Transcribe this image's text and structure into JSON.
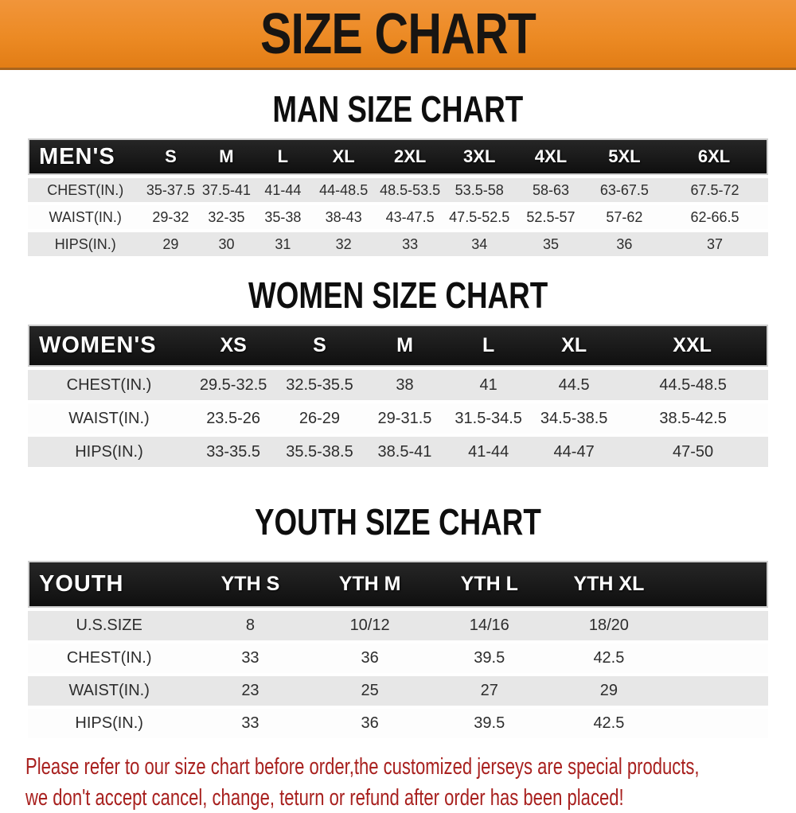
{
  "banner": {
    "title": "SIZE CHART",
    "bg_color": "#EC8A24",
    "text_color": "#181512"
  },
  "sections": {
    "men": {
      "title": "MAN SIZE CHART",
      "header_label": "MEN'S",
      "columns": [
        "S",
        "M",
        "L",
        "XL",
        "2XL",
        "3XL",
        "4XL",
        "5XL",
        "6XL"
      ],
      "rows": [
        {
          "label": "CHEST(IN.)",
          "values": [
            "35-37.5",
            "37.5-41",
            "41-44",
            "44-48.5",
            "48.5-53.5",
            "53.5-58",
            "58-63",
            "63-67.5",
            "67.5-72"
          ]
        },
        {
          "label": "WAIST(IN.)",
          "values": [
            "29-32",
            "32-35",
            "35-38",
            "38-43",
            "43-47.5",
            "47.5-52.5",
            "52.5-57",
            "57-62",
            "62-66.5"
          ]
        },
        {
          "label": "HIPS(IN.)",
          "values": [
            "29",
            "30",
            "31",
            "32",
            "33",
            "34",
            "35",
            "36",
            "37"
          ]
        }
      ]
    },
    "women": {
      "title": "WOMEN SIZE CHART",
      "header_label": "WOMEN'S",
      "columns": [
        "XS",
        "S",
        "M",
        "L",
        "XL",
        "XXL"
      ],
      "rows": [
        {
          "label": "CHEST(IN.)",
          "values": [
            "29.5-32.5",
            "32.5-35.5",
            "38",
            "41",
            "44.5",
            "44.5-48.5"
          ]
        },
        {
          "label": "WAIST(IN.)",
          "values": [
            "23.5-26",
            "26-29",
            "29-31.5",
            "31.5-34.5",
            "34.5-38.5",
            "38.5-42.5"
          ]
        },
        {
          "label": "HIPS(IN.)",
          "values": [
            "33-35.5",
            "35.5-38.5",
            "38.5-41",
            "41-44",
            "44-47",
            "47-50"
          ]
        }
      ]
    },
    "youth": {
      "title": "YOUTH SIZE CHART",
      "header_label": "YOUTH",
      "columns": [
        "YTH S",
        "YTH M",
        "YTH L",
        "YTH XL"
      ],
      "rows": [
        {
          "label": "U.S.SIZE",
          "values": [
            "8",
            "10/12",
            "14/16",
            "18/20"
          ]
        },
        {
          "label": "CHEST(IN.)",
          "values": [
            "33",
            "36",
            "39.5",
            "42.5"
          ]
        },
        {
          "label": "WAIST(IN.)",
          "values": [
            "23",
            "25",
            "27",
            "29"
          ]
        },
        {
          "label": "HIPS(IN.)",
          "values": [
            "33",
            "36",
            "39.5",
            "42.5"
          ]
        }
      ]
    }
  },
  "footer": {
    "text_color": "#A8201E",
    "lines": [
      "Please refer to our size chart before order,the customized jerseys are special products,",
      "we don't accept cancel, change, teturn or refund after order has been placed!"
    ]
  }
}
